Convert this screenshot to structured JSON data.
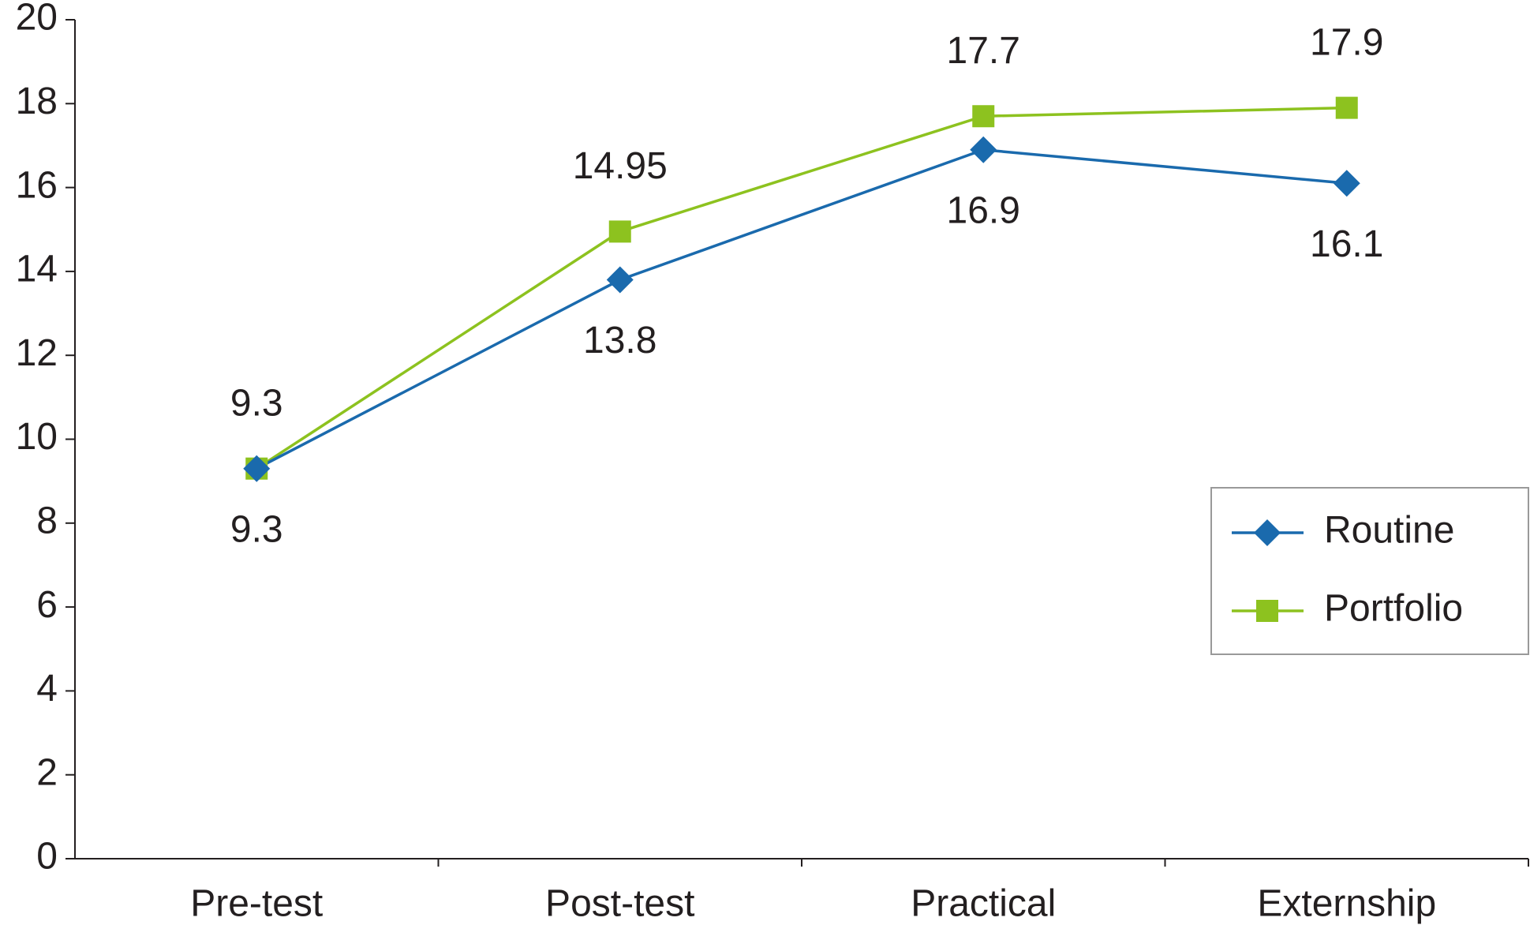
{
  "chart_data": {
    "type": "line",
    "categories": [
      "Pre-test",
      "Post-test",
      "Practical",
      "Externship"
    ],
    "series": [
      {
        "name": "Routine",
        "color": "#1a6aad",
        "marker": "diamond",
        "values": [
          9.3,
          13.8,
          16.9,
          16.1
        ]
      },
      {
        "name": "Portfolio",
        "color": "#8dc21f",
        "marker": "square",
        "values": [
          9.3,
          14.95,
          17.7,
          17.9
        ]
      }
    ],
    "ylim": [
      0,
      20
    ],
    "yticks": [
      0,
      2,
      4,
      6,
      8,
      10,
      12,
      14,
      16,
      18,
      20
    ],
    "grid": false,
    "legend": "lower right"
  }
}
